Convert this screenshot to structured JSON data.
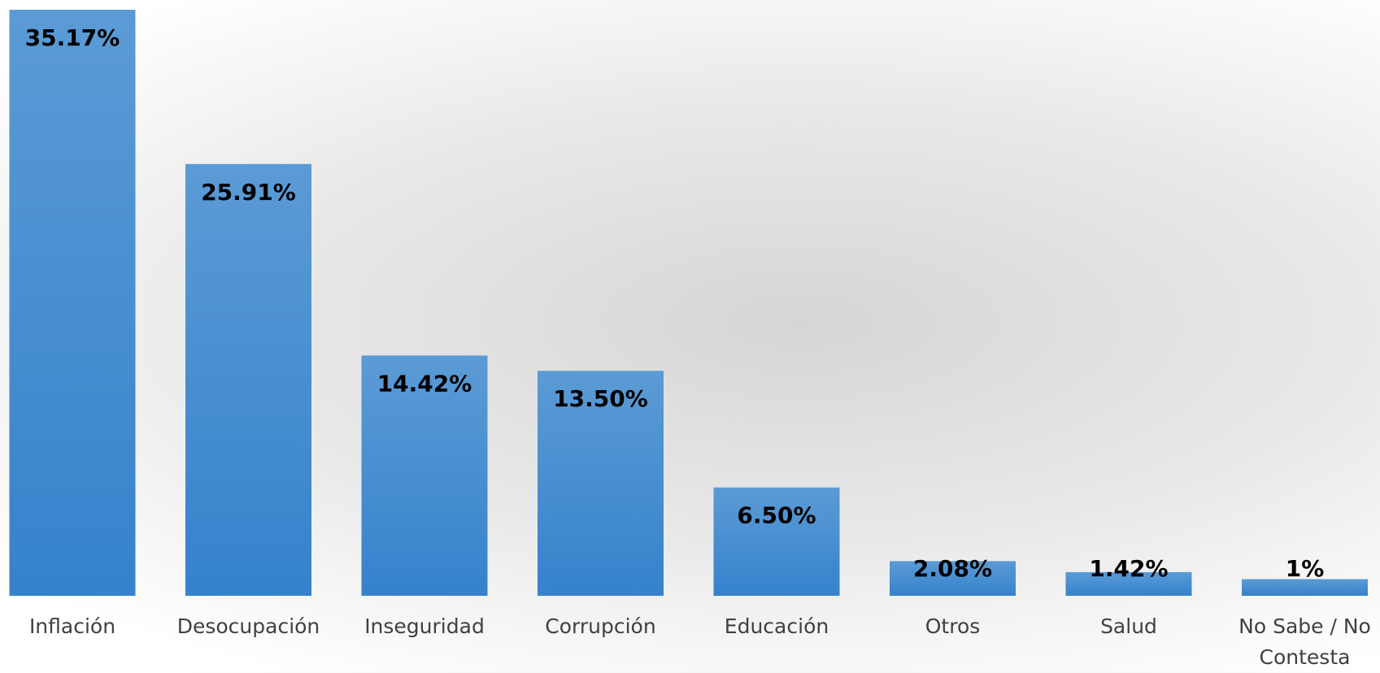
{
  "chart_data": {
    "type": "bar",
    "categories": [
      "Inflación",
      "Desocupación",
      "Inseguridad",
      "Corrupción",
      "Educación",
      "Otros",
      "Salud",
      "No Sabe / No Contesta"
    ],
    "values": [
      35.17,
      25.91,
      14.42,
      13.5,
      6.5,
      2.08,
      1.42,
      1
    ],
    "value_labels": [
      "35.17%",
      "25.91%",
      "14.42%",
      "13.50%",
      "6.50%",
      "2.08%",
      "1.42%",
      "1%"
    ],
    "color": "#4a8fd4",
    "ylim": [
      0,
      35.17
    ],
    "grid": false
  }
}
